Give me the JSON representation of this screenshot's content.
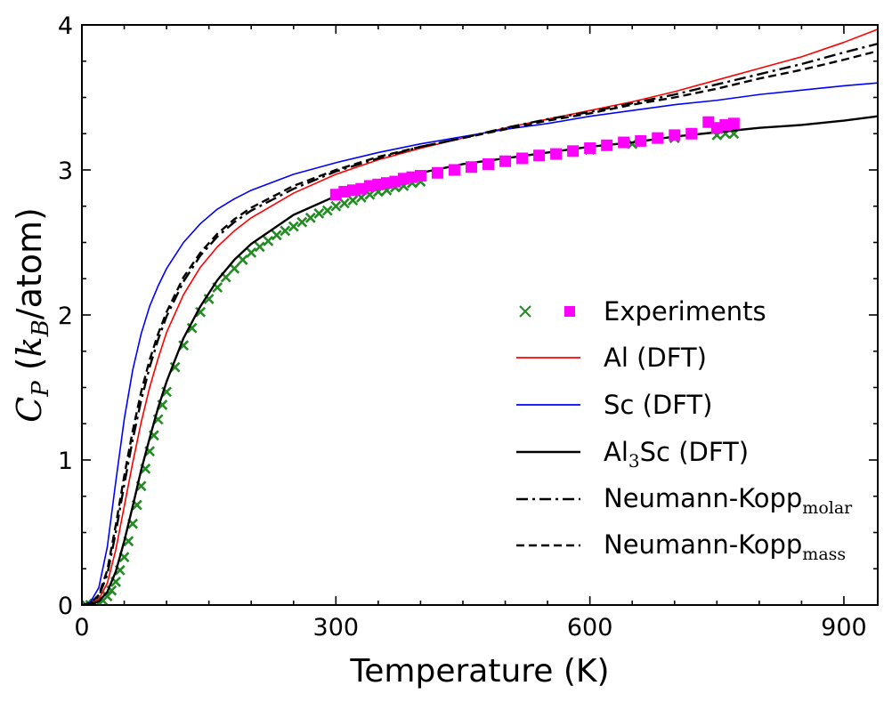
{
  "chart_data": {
    "type": "line",
    "xlabel": "Temperature (K)",
    "ylabel": "C_P (k_B/atom)",
    "xlim": [
      0,
      940
    ],
    "ylim": [
      0,
      4
    ],
    "xticks": [
      0,
      300,
      600,
      900
    ],
    "yticks": [
      0,
      1,
      2,
      3,
      4
    ],
    "xtick_labels": [
      "0",
      "300",
      "600",
      "900"
    ],
    "ytick_labels": [
      "0",
      "1",
      "2",
      "3",
      "4"
    ],
    "legend_position": "center-right",
    "series": [
      {
        "name": "Al (DFT)",
        "style": "solid",
        "color": "#ff0000",
        "x": [
          0,
          10,
          20,
          30,
          40,
          50,
          60,
          70,
          80,
          90,
          100,
          120,
          140,
          160,
          180,
          200,
          250,
          300,
          350,
          400,
          450,
          500,
          550,
          600,
          650,
          700,
          750,
          800,
          850,
          900,
          940
        ],
        "y": [
          0,
          0.005,
          0.04,
          0.15,
          0.38,
          0.68,
          0.98,
          1.26,
          1.5,
          1.7,
          1.88,
          2.14,
          2.33,
          2.47,
          2.58,
          2.67,
          2.84,
          2.97,
          3.07,
          3.15,
          3.22,
          3.29,
          3.35,
          3.41,
          3.47,
          3.54,
          3.62,
          3.7,
          3.78,
          3.88,
          3.97
        ]
      },
      {
        "name": "Sc (DFT)",
        "style": "solid",
        "color": "#0000ff",
        "x": [
          0,
          10,
          20,
          30,
          40,
          50,
          60,
          70,
          80,
          90,
          100,
          120,
          140,
          160,
          180,
          200,
          250,
          300,
          350,
          400,
          450,
          500,
          550,
          600,
          650,
          700,
          750,
          800,
          850,
          900,
          940
        ],
        "y": [
          0,
          0.02,
          0.12,
          0.4,
          0.85,
          1.28,
          1.62,
          1.87,
          2.06,
          2.2,
          2.32,
          2.5,
          2.63,
          2.73,
          2.8,
          2.86,
          2.97,
          3.05,
          3.12,
          3.18,
          3.23,
          3.28,
          3.32,
          3.37,
          3.41,
          3.45,
          3.48,
          3.52,
          3.55,
          3.58,
          3.6
        ]
      },
      {
        "name": "Al3Sc (DFT)",
        "style": "solid",
        "color": "#000000",
        "x": [
          0,
          10,
          20,
          30,
          40,
          50,
          60,
          70,
          80,
          90,
          100,
          120,
          140,
          160,
          180,
          200,
          250,
          300,
          350,
          400,
          450,
          500,
          550,
          600,
          650,
          700,
          750,
          800,
          850,
          900,
          940
        ],
        "y": [
          0,
          0.003,
          0.025,
          0.09,
          0.23,
          0.44,
          0.68,
          0.93,
          1.15,
          1.36,
          1.54,
          1.84,
          2.06,
          2.24,
          2.38,
          2.49,
          2.69,
          2.82,
          2.91,
          2.98,
          3.04,
          3.08,
          3.12,
          3.16,
          3.19,
          3.23,
          3.26,
          3.29,
          3.31,
          3.34,
          3.37
        ]
      },
      {
        "name": "Neumann-Kopp molar",
        "style": "dashdot",
        "color": "#000000",
        "x": [
          0,
          10,
          20,
          30,
          40,
          50,
          60,
          70,
          80,
          90,
          100,
          120,
          140,
          160,
          180,
          200,
          250,
          300,
          350,
          400,
          450,
          500,
          550,
          600,
          650,
          700,
          750,
          800,
          850,
          900,
          940
        ],
        "y": [
          0,
          0.01,
          0.06,
          0.21,
          0.5,
          0.83,
          1.14,
          1.41,
          1.64,
          1.83,
          1.99,
          2.23,
          2.41,
          2.54,
          2.64,
          2.72,
          2.87,
          2.99,
          3.08,
          3.16,
          3.22,
          3.29,
          3.35,
          3.4,
          3.46,
          3.52,
          3.59,
          3.66,
          3.73,
          3.81,
          3.87
        ]
      },
      {
        "name": "Neumann-Kopp mass",
        "style": "dashed",
        "color": "#000000",
        "x": [
          0,
          10,
          20,
          30,
          40,
          50,
          60,
          70,
          80,
          90,
          100,
          120,
          140,
          160,
          180,
          200,
          250,
          300,
          350,
          400,
          450,
          500,
          550,
          600,
          650,
          700,
          750,
          800,
          850,
          900,
          940
        ],
        "y": [
          0,
          0.012,
          0.07,
          0.24,
          0.55,
          0.89,
          1.2,
          1.47,
          1.69,
          1.87,
          2.02,
          2.26,
          2.43,
          2.56,
          2.66,
          2.74,
          2.89,
          3.0,
          3.09,
          3.16,
          3.22,
          3.28,
          3.34,
          3.39,
          3.45,
          3.5,
          3.56,
          3.63,
          3.69,
          3.76,
          3.82
        ]
      }
    ],
    "experiments": {
      "name": "Experiments",
      "crosses": {
        "color": "#228b22",
        "x": [
          5,
          10,
          15,
          20,
          25,
          30,
          35,
          40,
          45,
          50,
          55,
          60,
          65,
          70,
          75,
          80,
          85,
          90,
          95,
          100,
          110,
          120,
          130,
          140,
          150,
          160,
          170,
          180,
          190,
          200,
          210,
          220,
          230,
          240,
          250,
          260,
          270,
          280,
          290,
          300,
          310,
          320,
          330,
          340,
          350,
          360,
          370,
          380,
          390,
          400,
          600,
          650,
          700,
          750,
          760,
          770
        ],
        "y": [
          0.0,
          0.0,
          0.01,
          0.01,
          0.03,
          0.06,
          0.1,
          0.16,
          0.24,
          0.33,
          0.44,
          0.56,
          0.69,
          0.82,
          0.94,
          1.06,
          1.17,
          1.28,
          1.38,
          1.47,
          1.64,
          1.79,
          1.91,
          2.02,
          2.11,
          2.19,
          2.26,
          2.32,
          2.38,
          2.43,
          2.47,
          2.51,
          2.55,
          2.58,
          2.61,
          2.64,
          2.67,
          2.7,
          2.72,
          2.75,
          2.77,
          2.79,
          2.81,
          2.83,
          2.85,
          2.86,
          2.88,
          2.89,
          2.91,
          2.92,
          3.14,
          3.18,
          3.22,
          3.24,
          3.25,
          3.25
        ]
      },
      "squares": {
        "color": "#ff00ff",
        "x": [
          300,
          310,
          320,
          330,
          340,
          350,
          360,
          370,
          380,
          390,
          400,
          420,
          440,
          460,
          480,
          500,
          520,
          540,
          560,
          580,
          600,
          620,
          640,
          660,
          680,
          700,
          720,
          740,
          750,
          760,
          770
        ],
        "y": [
          2.83,
          2.85,
          2.86,
          2.87,
          2.89,
          2.9,
          2.91,
          2.92,
          2.94,
          2.95,
          2.96,
          2.98,
          3.0,
          3.02,
          3.04,
          3.06,
          3.08,
          3.1,
          3.11,
          3.13,
          3.15,
          3.17,
          3.19,
          3.2,
          3.22,
          3.24,
          3.25,
          3.33,
          3.29,
          3.31,
          3.32
        ]
      }
    }
  },
  "legend": {
    "experiments": "Experiments",
    "al": "Al (DFT)",
    "sc": "Sc (DFT)",
    "al3sc_prefix": "Al",
    "al3sc_sub": "3",
    "al3sc_suffix": "Sc (DFT)",
    "nk_molar_prefix": "Neumann-Kopp",
    "nk_molar_sub": "molar",
    "nk_mass_prefix": "Neumann-Kopp",
    "nk_mass_sub": "mass"
  },
  "axes": {
    "ylabel_main": "C",
    "ylabel_sub": "P",
    "ylabel_open": " (",
    "ylabel_k": "k",
    "ylabel_ksub": "B",
    "ylabel_close": "/atom)"
  }
}
